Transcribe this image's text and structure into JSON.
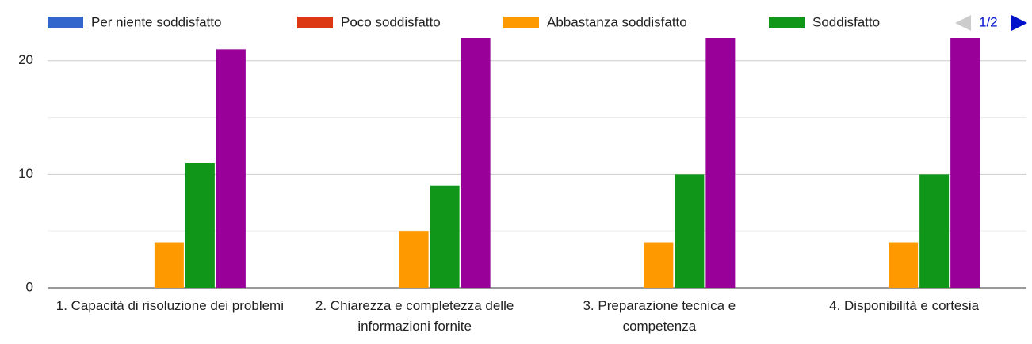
{
  "chart_data": {
    "type": "bar",
    "categories": [
      "1. Capacità di risoluzione dei problemi",
      "2. Chiarezza e completezza delle informazioni fornite",
      "3. Preparazione tecnica e competenza",
      "4. Disponibilità e cortesia"
    ],
    "series": [
      {
        "name": "Per niente soddisfatto",
        "color": "#3366cc",
        "values": [
          0,
          0,
          0,
          0
        ]
      },
      {
        "name": "Poco soddisfatto",
        "color": "#dc3912",
        "values": [
          0,
          0,
          0,
          0
        ]
      },
      {
        "name": "Abbastanza soddisfatto",
        "color": "#ff9900",
        "values": [
          4,
          5,
          4,
          4
        ]
      },
      {
        "name": "Soddisfatto",
        "color": "#109618",
        "values": [
          11,
          9,
          10,
          10
        ]
      },
      {
        "color": "#990099",
        "values": [
          21,
          22,
          22,
          22
        ]
      }
    ],
    "legend_page": "1/2",
    "ylim": [
      0,
      22
    ],
    "yticks": [
      0,
      10,
      20
    ],
    "minor_yticks": [
      5,
      15
    ],
    "grid": true
  }
}
